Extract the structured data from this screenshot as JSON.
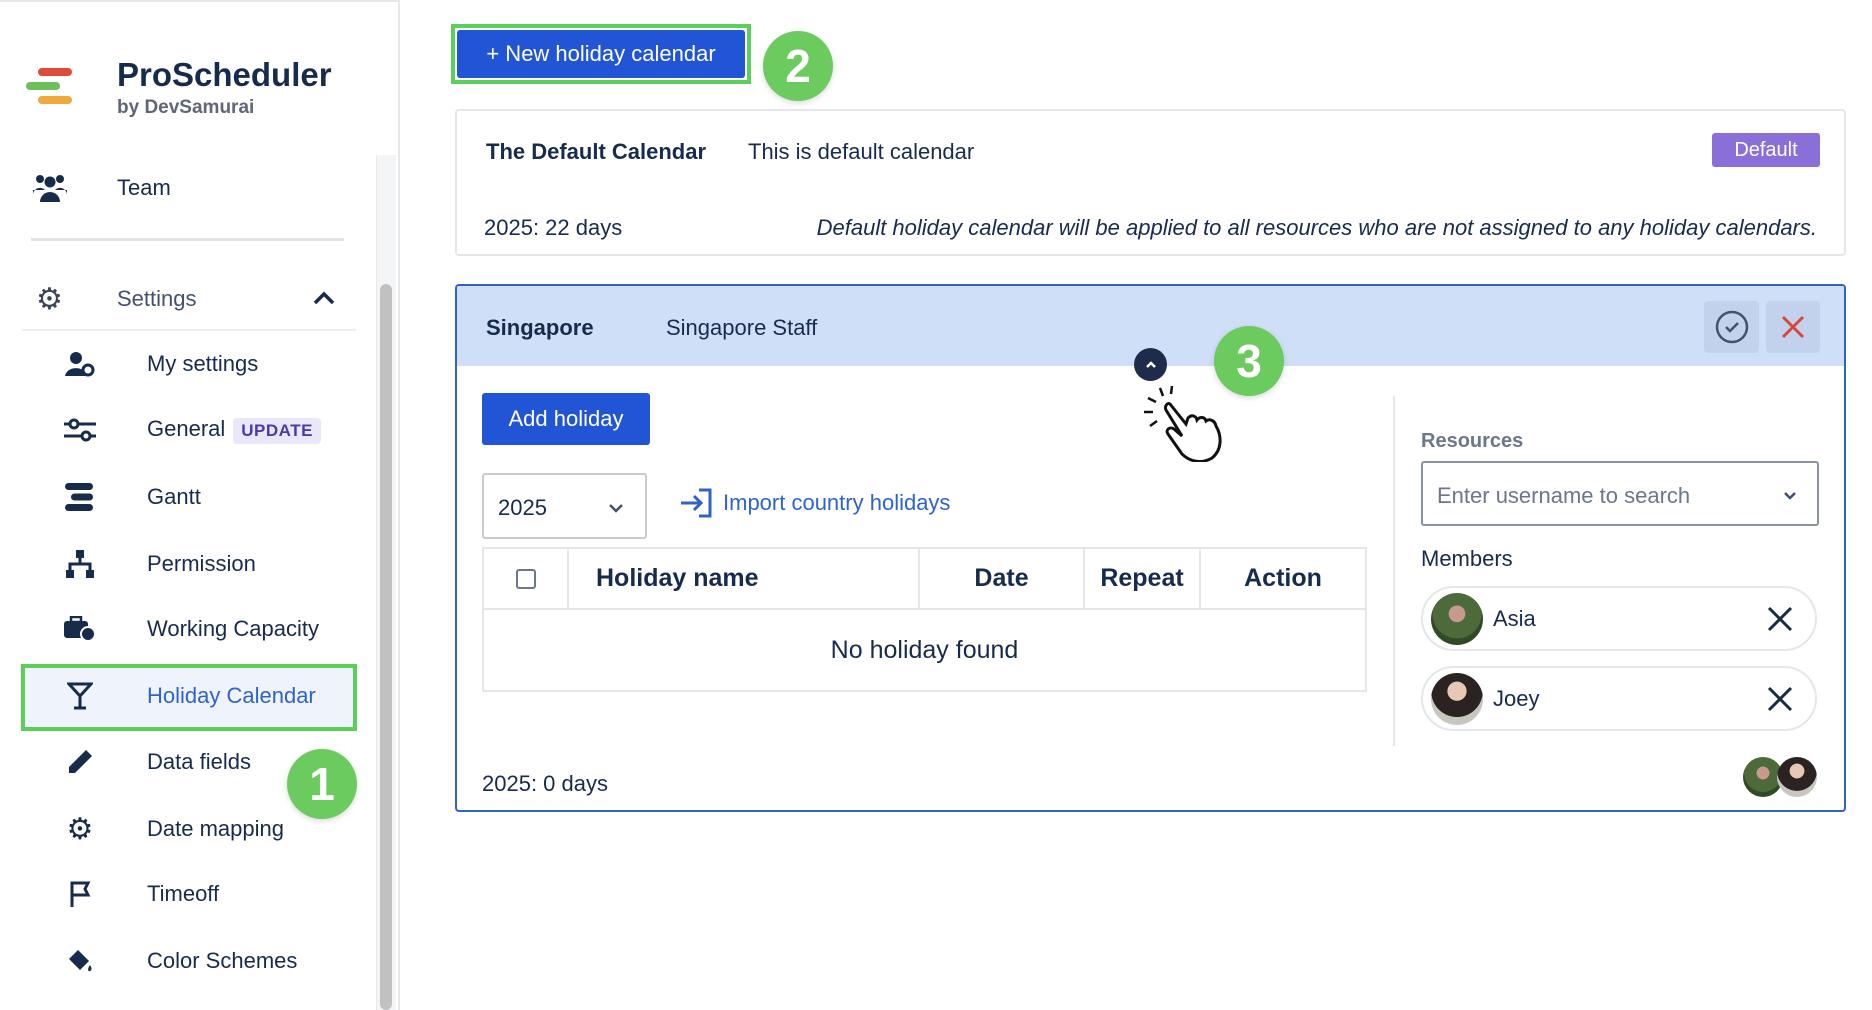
{
  "sidebar": {
    "brand": {
      "title": "ProScheduler",
      "subtitle": "by DevSamurai"
    },
    "team": {
      "label": "Team",
      "icon": "users-icon"
    },
    "settings": {
      "label": "Settings",
      "icon": "gear-icon",
      "expanded": true
    },
    "items": [
      {
        "label": "My settings",
        "icon": "user-gear-icon"
      },
      {
        "label": "General",
        "icon": "sliders-icon",
        "badge": "UPDATE"
      },
      {
        "label": "Gantt",
        "icon": "gantt-icon"
      },
      {
        "label": "Permission",
        "icon": "hierarchy-icon"
      },
      {
        "label": "Working Capacity",
        "icon": "briefcase-clock-icon"
      },
      {
        "label": "Holiday Calendar",
        "icon": "cocktail-icon",
        "active": true
      },
      {
        "label": "Data fields",
        "icon": "pencil-icon"
      },
      {
        "label": "Date mapping",
        "icon": "gear-icon"
      },
      {
        "label": "Timeoff",
        "icon": "flag-icon"
      },
      {
        "label": "Color Schemes",
        "icon": "paint-bucket-icon"
      }
    ]
  },
  "annotations": {
    "step1": "1",
    "step2": "2",
    "step3": "3"
  },
  "toolbar": {
    "new_calendar_label": "+ New holiday calendar"
  },
  "default_calendar": {
    "name": "The Default Calendar",
    "description": "This is default calendar",
    "badge": "Default",
    "days": "2025: 22 days",
    "note": "Default holiday calendar will be applied to all resources who are not assigned to any holiday calendars."
  },
  "singapore_calendar": {
    "name": "Singapore",
    "description": "Singapore Staff",
    "add_holiday_label": "Add holiday",
    "year": "2025",
    "import_label": "Import country holidays",
    "table": {
      "columns": [
        "Holiday name",
        "Date",
        "Repeat",
        "Action"
      ],
      "empty_text": "No holiday found"
    },
    "days": "2025: 0 days",
    "resources_label": "Resources",
    "resources_placeholder": "Enter username to search",
    "members_label": "Members",
    "members": [
      {
        "name": "Asia"
      },
      {
        "name": "Joey"
      }
    ]
  },
  "colors": {
    "primary": "#2155d6",
    "annotation_green": "#6ccb5f",
    "header_bg": "#d0dff8",
    "default_badge": "#8a6fd8",
    "danger": "#d9463b"
  }
}
